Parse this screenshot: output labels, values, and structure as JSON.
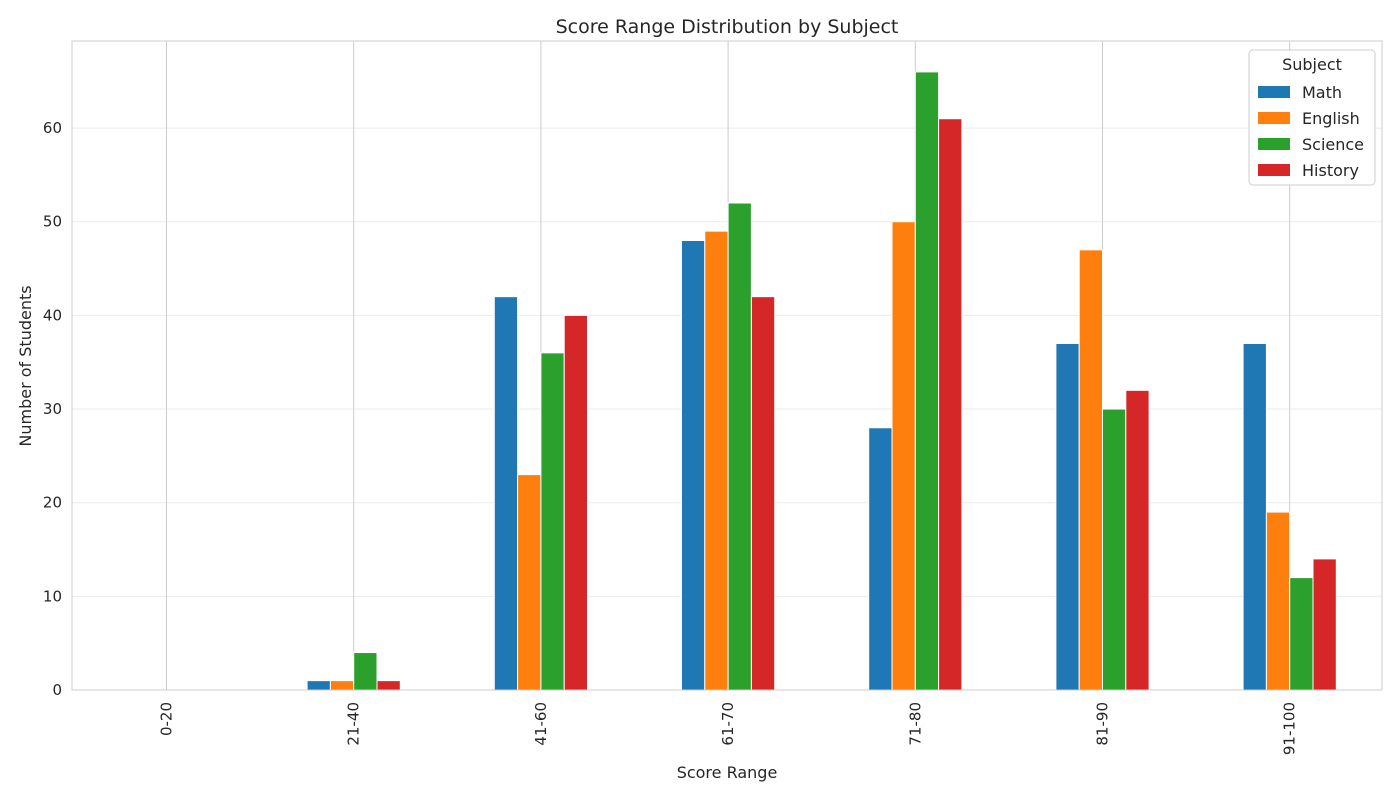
{
  "chart_data": {
    "type": "bar",
    "title": "Score Range Distribution by Subject",
    "xlabel": "Score Range",
    "ylabel": "Number of Students",
    "categories": [
      "0-20",
      "21-40",
      "41-60",
      "61-70",
      "71-80",
      "81-90",
      "91-100"
    ],
    "series": [
      {
        "name": "Math",
        "color": "#1f77b4",
        "values": [
          0,
          1,
          42,
          48,
          28,
          37,
          37
        ]
      },
      {
        "name": "English",
        "color": "#ff7f0e",
        "values": [
          0,
          1,
          23,
          49,
          50,
          47,
          19
        ]
      },
      {
        "name": "Science",
        "color": "#2ca02c",
        "values": [
          0,
          4,
          36,
          52,
          66,
          30,
          12
        ]
      },
      {
        "name": "History",
        "color": "#d62728",
        "values": [
          0,
          1,
          40,
          42,
          61,
          32,
          14
        ]
      }
    ],
    "ylim": [
      0,
      69.3
    ],
    "yticks": [
      0,
      10,
      20,
      30,
      40,
      50,
      60
    ],
    "grid": true,
    "legend": {
      "title": "Subject",
      "placement": "top-right"
    }
  }
}
